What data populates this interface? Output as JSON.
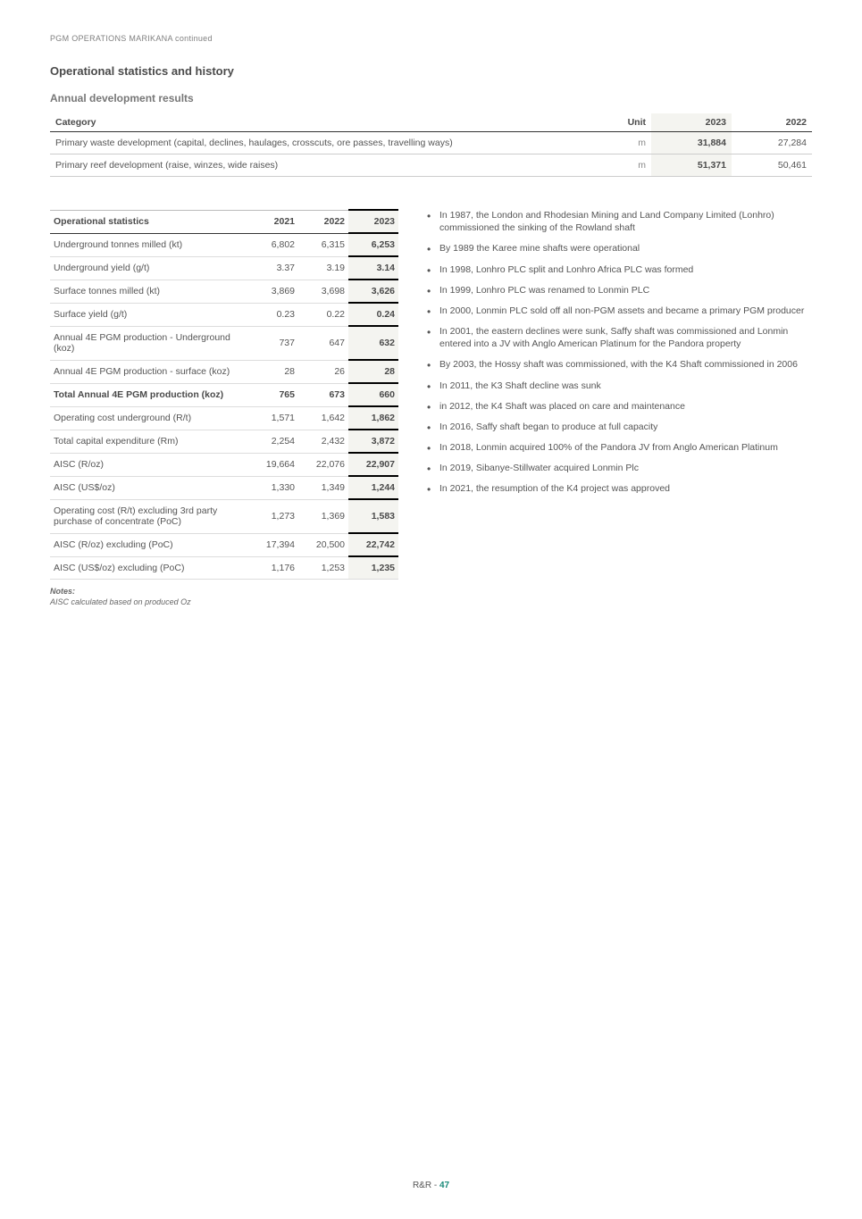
{
  "header": {
    "breadcrumb": "PGM OPERATIONS MARIKANA continued"
  },
  "section_title": "Operational statistics and history",
  "dev": {
    "title": "Annual development results",
    "columns": {
      "category": "Category",
      "unit": "Unit",
      "y2023": "2023",
      "y2022": "2022"
    },
    "rows": [
      {
        "label": "Primary waste development (capital, declines, haulages, crosscuts, ore passes, travelling ways)",
        "unit": "m",
        "v2023": "31,884",
        "v2022": "27,284"
      },
      {
        "label": "Primary reef development (raise, winzes, wide raises)",
        "unit": "m",
        "v2023": "51,371",
        "v2022": "50,461"
      }
    ]
  },
  "stats": {
    "header": {
      "label": "Operational statistics",
      "y2021": "2021",
      "y2022": "2022",
      "y2023": "2023"
    },
    "rows": [
      {
        "label": "Underground tonnes milled (kt)",
        "v2021": "6,802",
        "v2022": "6,315",
        "v2023": "6,253",
        "bold": false
      },
      {
        "label": "Underground yield (g/t)",
        "v2021": "3.37",
        "v2022": "3.19",
        "v2023": "3.14",
        "bold": false
      },
      {
        "label": "Surface tonnes milled (kt)",
        "v2021": "3,869",
        "v2022": "3,698",
        "v2023": "3,626",
        "bold": false
      },
      {
        "label": "Surface yield (g/t)",
        "v2021": "0.23",
        "v2022": "0.22",
        "v2023": "0.24",
        "bold": false
      },
      {
        "label": "Annual 4E PGM production - Underground (koz)",
        "v2021": "737",
        "v2022": "647",
        "v2023": "632",
        "bold": false
      },
      {
        "label": "Annual 4E PGM production - surface (koz)",
        "v2021": "28",
        "v2022": "26",
        "v2023": "28",
        "bold": false
      },
      {
        "label": "Total Annual 4E PGM production (koz)",
        "v2021": "765",
        "v2022": "673",
        "v2023": "660",
        "bold": true
      },
      {
        "label": "Operating cost underground (R/t)",
        "v2021": "1,571",
        "v2022": "1,642",
        "v2023": "1,862",
        "bold": false
      },
      {
        "label": "Total capital expenditure (Rm)",
        "v2021": "2,254",
        "v2022": "2,432",
        "v2023": "3,872",
        "bold": false
      },
      {
        "label": "AISC (R/oz)",
        "v2021": "19,664",
        "v2022": "22,076",
        "v2023": "22,907",
        "bold": false
      },
      {
        "label": "AISC (US$/oz)",
        "v2021": "1,330",
        "v2022": "1,349",
        "v2023": "1,244",
        "bold": false
      },
      {
        "label": "Operating cost (R/t) excluding 3rd party purchase of concentrate (PoC)",
        "v2021": "1,273",
        "v2022": "1,369",
        "v2023": "1,583",
        "bold": false
      },
      {
        "label": "AISC (R/oz) excluding (PoC)",
        "v2021": "17,394",
        "v2022": "20,500",
        "v2023": "22,742",
        "bold": false
      },
      {
        "label": "AISC (US$/oz) excluding  (PoC)",
        "v2021": "1,176",
        "v2022": "1,253",
        "v2023": "1,235",
        "bold": false
      }
    ],
    "notes_label": "Notes:",
    "notes_text": "AISC calculated based on produced Oz"
  },
  "history": [
    "In 1987, the London and Rhodesian Mining and Land Company Limited (Lonhro) commissioned the sinking of the Rowland shaft",
    "By 1989 the Karee mine shafts were operational",
    "In 1998, Lonhro PLC split and Lonhro Africa PLC was formed",
    "In 1999, Lonhro PLC was renamed to Lonmin PLC",
    "In 2000, Lonmin PLC sold off all non-PGM assets and became a primary PGM producer",
    "In 2001, the eastern declines were sunk, Saffy shaft was commissioned and Lonmin entered into a JV with Anglo American Platinum for the Pandora property",
    "By 2003, the Hossy shaft was commissioned, with the K4 Shaft commissioned in 2006",
    "In 2011, the K3 Shaft decline was sunk",
    "in 2012, the K4 Shaft was placed on care and maintenance",
    "In 2016, Saffy shaft began to produce at full capacity",
    "In 2018, Lonmin acquired 100% of the Pandora JV from Anglo American Platinum",
    "In 2019, Sibanye-Stillwater acquired Lonmin Plc",
    "In 2021, the resumption of the K4 project was approved"
  ],
  "footer": {
    "prefix": "R&R - ",
    "page": "47"
  },
  "colors": {
    "accent": "#1b8a7a",
    "highlight_bg": "#f4f4f0",
    "text": "#4a4a4a",
    "muted": "#808080"
  }
}
